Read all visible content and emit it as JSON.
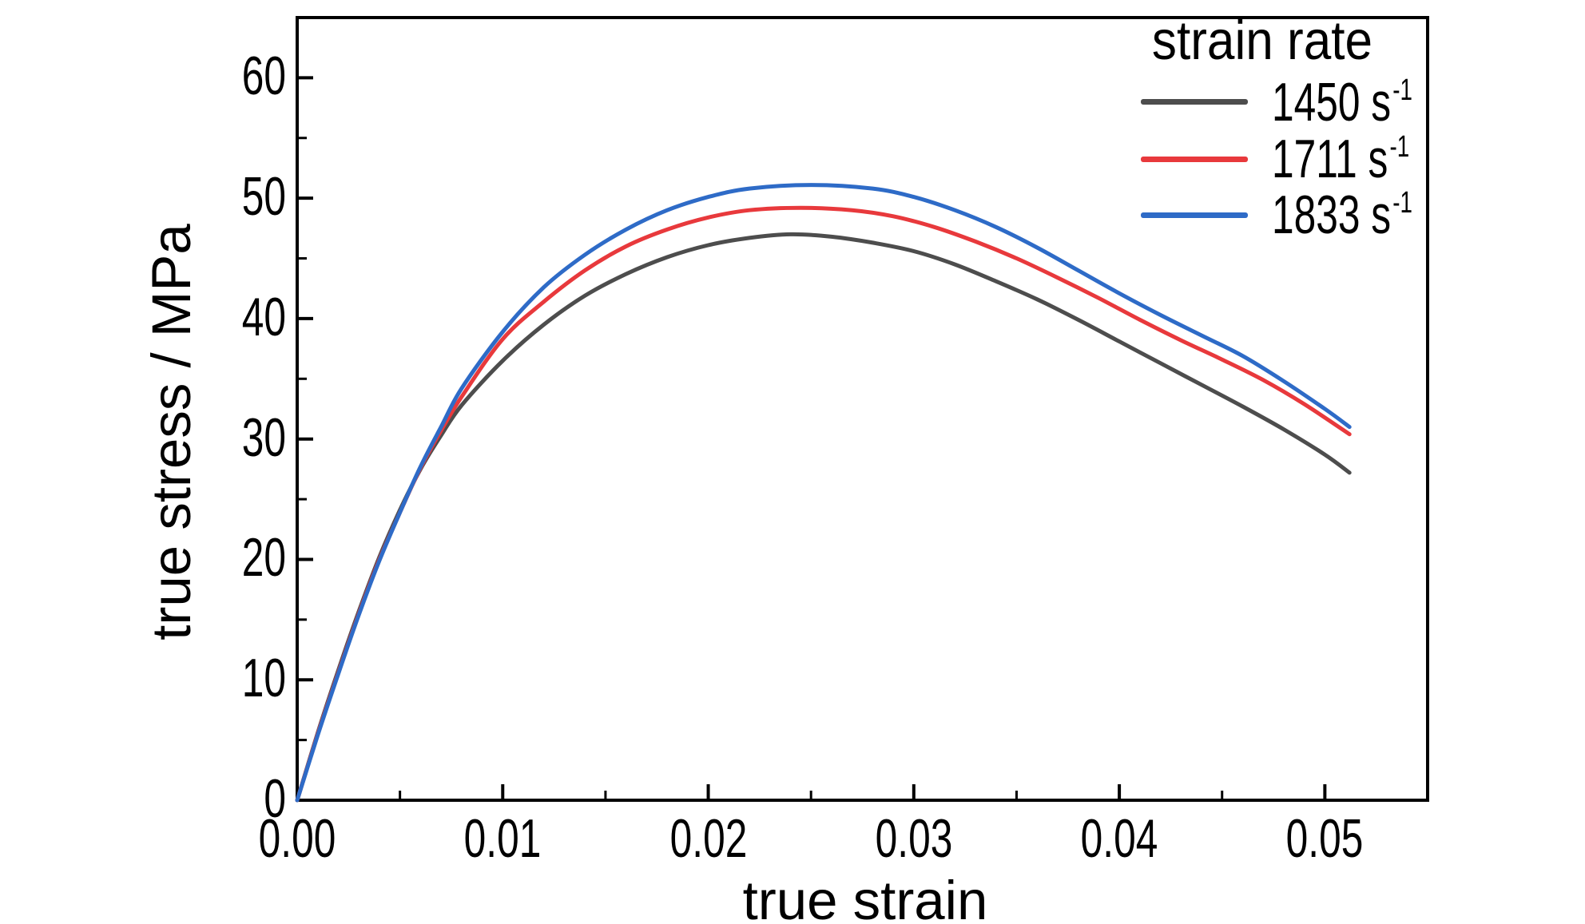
{
  "chart_data": {
    "type": "line",
    "title": "",
    "xlabel": "true strain",
    "ylabel": "true stress / MPa",
    "xlim": [
      0,
      0.055
    ],
    "ylim": [
      0,
      65
    ],
    "grid": false,
    "background": "#ffffff",
    "axis_color": "#000000",
    "x_ticks": [
      0,
      0.01,
      0.02,
      0.03,
      0.04,
      0.05
    ],
    "x_tick_labels": [
      "0.00",
      "0.01",
      "0.02",
      "0.03",
      "0.04",
      "0.05"
    ],
    "x_minor_ticks": [
      0.005,
      0.015,
      0.025,
      0.035,
      0.045
    ],
    "y_ticks": [
      0,
      10,
      20,
      30,
      40,
      50,
      60
    ],
    "y_tick_labels": [
      "0",
      "10",
      "20",
      "30",
      "40",
      "50",
      "60"
    ],
    "y_minor_ticks": [
      5,
      15,
      25,
      35,
      45,
      55
    ],
    "legend_title": "strain rate",
    "legend_position": "top-right",
    "series": [
      {
        "name": "1450 s⁻¹",
        "label_base": "1450 s",
        "label_exp": "-1",
        "color": "#4d4d4d",
        "points": [
          [
            0,
            0
          ],
          [
            0.001,
            5.6
          ],
          [
            0.002,
            10.8
          ],
          [
            0.003,
            15.7
          ],
          [
            0.004,
            20.2
          ],
          [
            0.005,
            24.1
          ],
          [
            0.006,
            27.5
          ],
          [
            0.007,
            30.3
          ],
          [
            0.008,
            32.8
          ],
          [
            0.01,
            36.5
          ],
          [
            0.012,
            39.5
          ],
          [
            0.014,
            41.9
          ],
          [
            0.016,
            43.7
          ],
          [
            0.018,
            45.1
          ],
          [
            0.02,
            46.1
          ],
          [
            0.022,
            46.7
          ],
          [
            0.024,
            47.0
          ],
          [
            0.026,
            46.8
          ],
          [
            0.028,
            46.3
          ],
          [
            0.03,
            45.6
          ],
          [
            0.032,
            44.5
          ],
          [
            0.034,
            43.1
          ],
          [
            0.036,
            41.6
          ],
          [
            0.038,
            39.9
          ],
          [
            0.04,
            38.1
          ],
          [
            0.042,
            36.3
          ],
          [
            0.044,
            34.5
          ],
          [
            0.046,
            32.7
          ],
          [
            0.048,
            30.8
          ],
          [
            0.05,
            28.7
          ],
          [
            0.0512,
            27.2
          ]
        ]
      },
      {
        "name": "1711 s⁻¹",
        "label_base": "1711 s",
        "label_exp": "-1",
        "color": "#e8393c",
        "points": [
          [
            0,
            0
          ],
          [
            0.001,
            5.5
          ],
          [
            0.002,
            10.6
          ],
          [
            0.003,
            15.5
          ],
          [
            0.004,
            20.0
          ],
          [
            0.005,
            23.9
          ],
          [
            0.006,
            27.6
          ],
          [
            0.007,
            30.7
          ],
          [
            0.008,
            33.5
          ],
          [
            0.01,
            38.3
          ],
          [
            0.012,
            41.4
          ],
          [
            0.014,
            44.0
          ],
          [
            0.016,
            46.0
          ],
          [
            0.018,
            47.4
          ],
          [
            0.02,
            48.4
          ],
          [
            0.022,
            49.0
          ],
          [
            0.0245,
            49.2
          ],
          [
            0.027,
            49.0
          ],
          [
            0.029,
            48.5
          ],
          [
            0.031,
            47.6
          ],
          [
            0.033,
            46.4
          ],
          [
            0.035,
            45.0
          ],
          [
            0.037,
            43.4
          ],
          [
            0.039,
            41.7
          ],
          [
            0.041,
            39.9
          ],
          [
            0.043,
            38.2
          ],
          [
            0.045,
            36.6
          ],
          [
            0.047,
            34.9
          ],
          [
            0.049,
            32.9
          ],
          [
            0.0512,
            30.4
          ]
        ]
      },
      {
        "name": "1833 s⁻¹",
        "label_base": "1833 s",
        "label_exp": "-1",
        "color": "#2e6bc7",
        "points": [
          [
            0,
            0
          ],
          [
            0.001,
            5.4
          ],
          [
            0.002,
            10.5
          ],
          [
            0.003,
            15.4
          ],
          [
            0.004,
            19.9
          ],
          [
            0.005,
            23.9
          ],
          [
            0.006,
            27.7
          ],
          [
            0.007,
            31.0
          ],
          [
            0.008,
            34.2
          ],
          [
            0.01,
            38.9
          ],
          [
            0.012,
            42.6
          ],
          [
            0.014,
            45.3
          ],
          [
            0.016,
            47.4
          ],
          [
            0.018,
            49.0
          ],
          [
            0.02,
            50.1
          ],
          [
            0.022,
            50.8
          ],
          [
            0.025,
            51.1
          ],
          [
            0.028,
            50.8
          ],
          [
            0.03,
            50.1
          ],
          [
            0.032,
            49.0
          ],
          [
            0.034,
            47.6
          ],
          [
            0.036,
            45.9
          ],
          [
            0.038,
            44.0
          ],
          [
            0.04,
            42.1
          ],
          [
            0.042,
            40.3
          ],
          [
            0.044,
            38.6
          ],
          [
            0.046,
            36.9
          ],
          [
            0.048,
            34.8
          ],
          [
            0.05,
            32.5
          ],
          [
            0.0512,
            31.0
          ]
        ]
      }
    ]
  }
}
